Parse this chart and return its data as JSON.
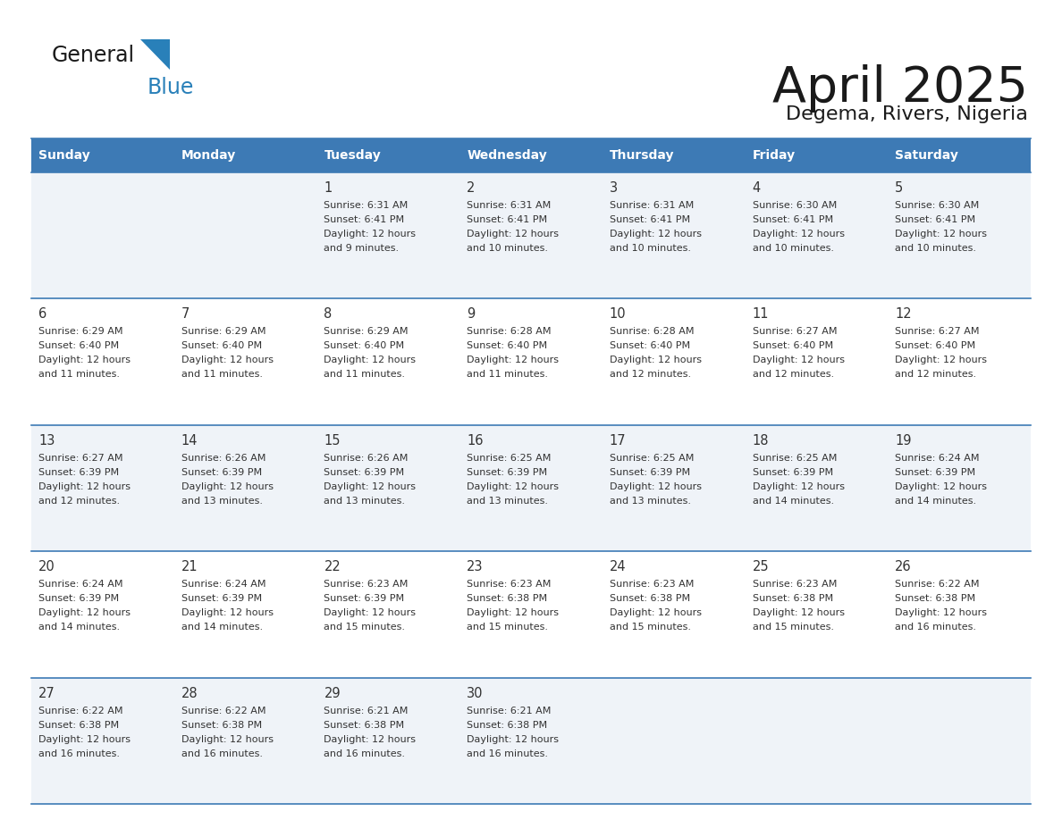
{
  "title": "April 2025",
  "subtitle": "Degema, Rivers, Nigeria",
  "header_bg_color": "#3d7ab5",
  "header_text_color": "#ffffff",
  "text_color": "#333333",
  "line_color": "#3d7ab5",
  "days_of_week": [
    "Sunday",
    "Monday",
    "Tuesday",
    "Wednesday",
    "Thursday",
    "Friday",
    "Saturday"
  ],
  "weeks": [
    [
      {
        "day": null,
        "sunrise": null,
        "sunset": null,
        "daylight": null
      },
      {
        "day": null,
        "sunrise": null,
        "sunset": null,
        "daylight": null
      },
      {
        "day": 1,
        "sunrise": "6:31 AM",
        "sunset": "6:41 PM",
        "daylight": "12 hours and 9 minutes."
      },
      {
        "day": 2,
        "sunrise": "6:31 AM",
        "sunset": "6:41 PM",
        "daylight": "12 hours and 10 minutes."
      },
      {
        "day": 3,
        "sunrise": "6:31 AM",
        "sunset": "6:41 PM",
        "daylight": "12 hours and 10 minutes."
      },
      {
        "day": 4,
        "sunrise": "6:30 AM",
        "sunset": "6:41 PM",
        "daylight": "12 hours and 10 minutes."
      },
      {
        "day": 5,
        "sunrise": "6:30 AM",
        "sunset": "6:41 PM",
        "daylight": "12 hours and 10 minutes."
      }
    ],
    [
      {
        "day": 6,
        "sunrise": "6:29 AM",
        "sunset": "6:40 PM",
        "daylight": "12 hours and 11 minutes."
      },
      {
        "day": 7,
        "sunrise": "6:29 AM",
        "sunset": "6:40 PM",
        "daylight": "12 hours and 11 minutes."
      },
      {
        "day": 8,
        "sunrise": "6:29 AM",
        "sunset": "6:40 PM",
        "daylight": "12 hours and 11 minutes."
      },
      {
        "day": 9,
        "sunrise": "6:28 AM",
        "sunset": "6:40 PM",
        "daylight": "12 hours and 11 minutes."
      },
      {
        "day": 10,
        "sunrise": "6:28 AM",
        "sunset": "6:40 PM",
        "daylight": "12 hours and 12 minutes."
      },
      {
        "day": 11,
        "sunrise": "6:27 AM",
        "sunset": "6:40 PM",
        "daylight": "12 hours and 12 minutes."
      },
      {
        "day": 12,
        "sunrise": "6:27 AM",
        "sunset": "6:40 PM",
        "daylight": "12 hours and 12 minutes."
      }
    ],
    [
      {
        "day": 13,
        "sunrise": "6:27 AM",
        "sunset": "6:39 PM",
        "daylight": "12 hours and 12 minutes."
      },
      {
        "day": 14,
        "sunrise": "6:26 AM",
        "sunset": "6:39 PM",
        "daylight": "12 hours and 13 minutes."
      },
      {
        "day": 15,
        "sunrise": "6:26 AM",
        "sunset": "6:39 PM",
        "daylight": "12 hours and 13 minutes."
      },
      {
        "day": 16,
        "sunrise": "6:25 AM",
        "sunset": "6:39 PM",
        "daylight": "12 hours and 13 minutes."
      },
      {
        "day": 17,
        "sunrise": "6:25 AM",
        "sunset": "6:39 PM",
        "daylight": "12 hours and 13 minutes."
      },
      {
        "day": 18,
        "sunrise": "6:25 AM",
        "sunset": "6:39 PM",
        "daylight": "12 hours and 14 minutes."
      },
      {
        "day": 19,
        "sunrise": "6:24 AM",
        "sunset": "6:39 PM",
        "daylight": "12 hours and 14 minutes."
      }
    ],
    [
      {
        "day": 20,
        "sunrise": "6:24 AM",
        "sunset": "6:39 PM",
        "daylight": "12 hours and 14 minutes."
      },
      {
        "day": 21,
        "sunrise": "6:24 AM",
        "sunset": "6:39 PM",
        "daylight": "12 hours and 14 minutes."
      },
      {
        "day": 22,
        "sunrise": "6:23 AM",
        "sunset": "6:39 PM",
        "daylight": "12 hours and 15 minutes."
      },
      {
        "day": 23,
        "sunrise": "6:23 AM",
        "sunset": "6:38 PM",
        "daylight": "12 hours and 15 minutes."
      },
      {
        "day": 24,
        "sunrise": "6:23 AM",
        "sunset": "6:38 PM",
        "daylight": "12 hours and 15 minutes."
      },
      {
        "day": 25,
        "sunrise": "6:23 AM",
        "sunset": "6:38 PM",
        "daylight": "12 hours and 15 minutes."
      },
      {
        "day": 26,
        "sunrise": "6:22 AM",
        "sunset": "6:38 PM",
        "daylight": "12 hours and 16 minutes."
      }
    ],
    [
      {
        "day": 27,
        "sunrise": "6:22 AM",
        "sunset": "6:38 PM",
        "daylight": "12 hours and 16 minutes."
      },
      {
        "day": 28,
        "sunrise": "6:22 AM",
        "sunset": "6:38 PM",
        "daylight": "12 hours and 16 minutes."
      },
      {
        "day": 29,
        "sunrise": "6:21 AM",
        "sunset": "6:38 PM",
        "daylight": "12 hours and 16 minutes."
      },
      {
        "day": 30,
        "sunrise": "6:21 AM",
        "sunset": "6:38 PM",
        "daylight": "12 hours and 16 minutes."
      },
      {
        "day": null,
        "sunrise": null,
        "sunset": null,
        "daylight": null
      },
      {
        "day": null,
        "sunrise": null,
        "sunset": null,
        "daylight": null
      },
      {
        "day": null,
        "sunrise": null,
        "sunset": null,
        "daylight": null
      }
    ]
  ],
  "logo_color_general": "#1a1a1a",
  "logo_color_blue": "#2980b9",
  "logo_triangle_color": "#2980b9"
}
